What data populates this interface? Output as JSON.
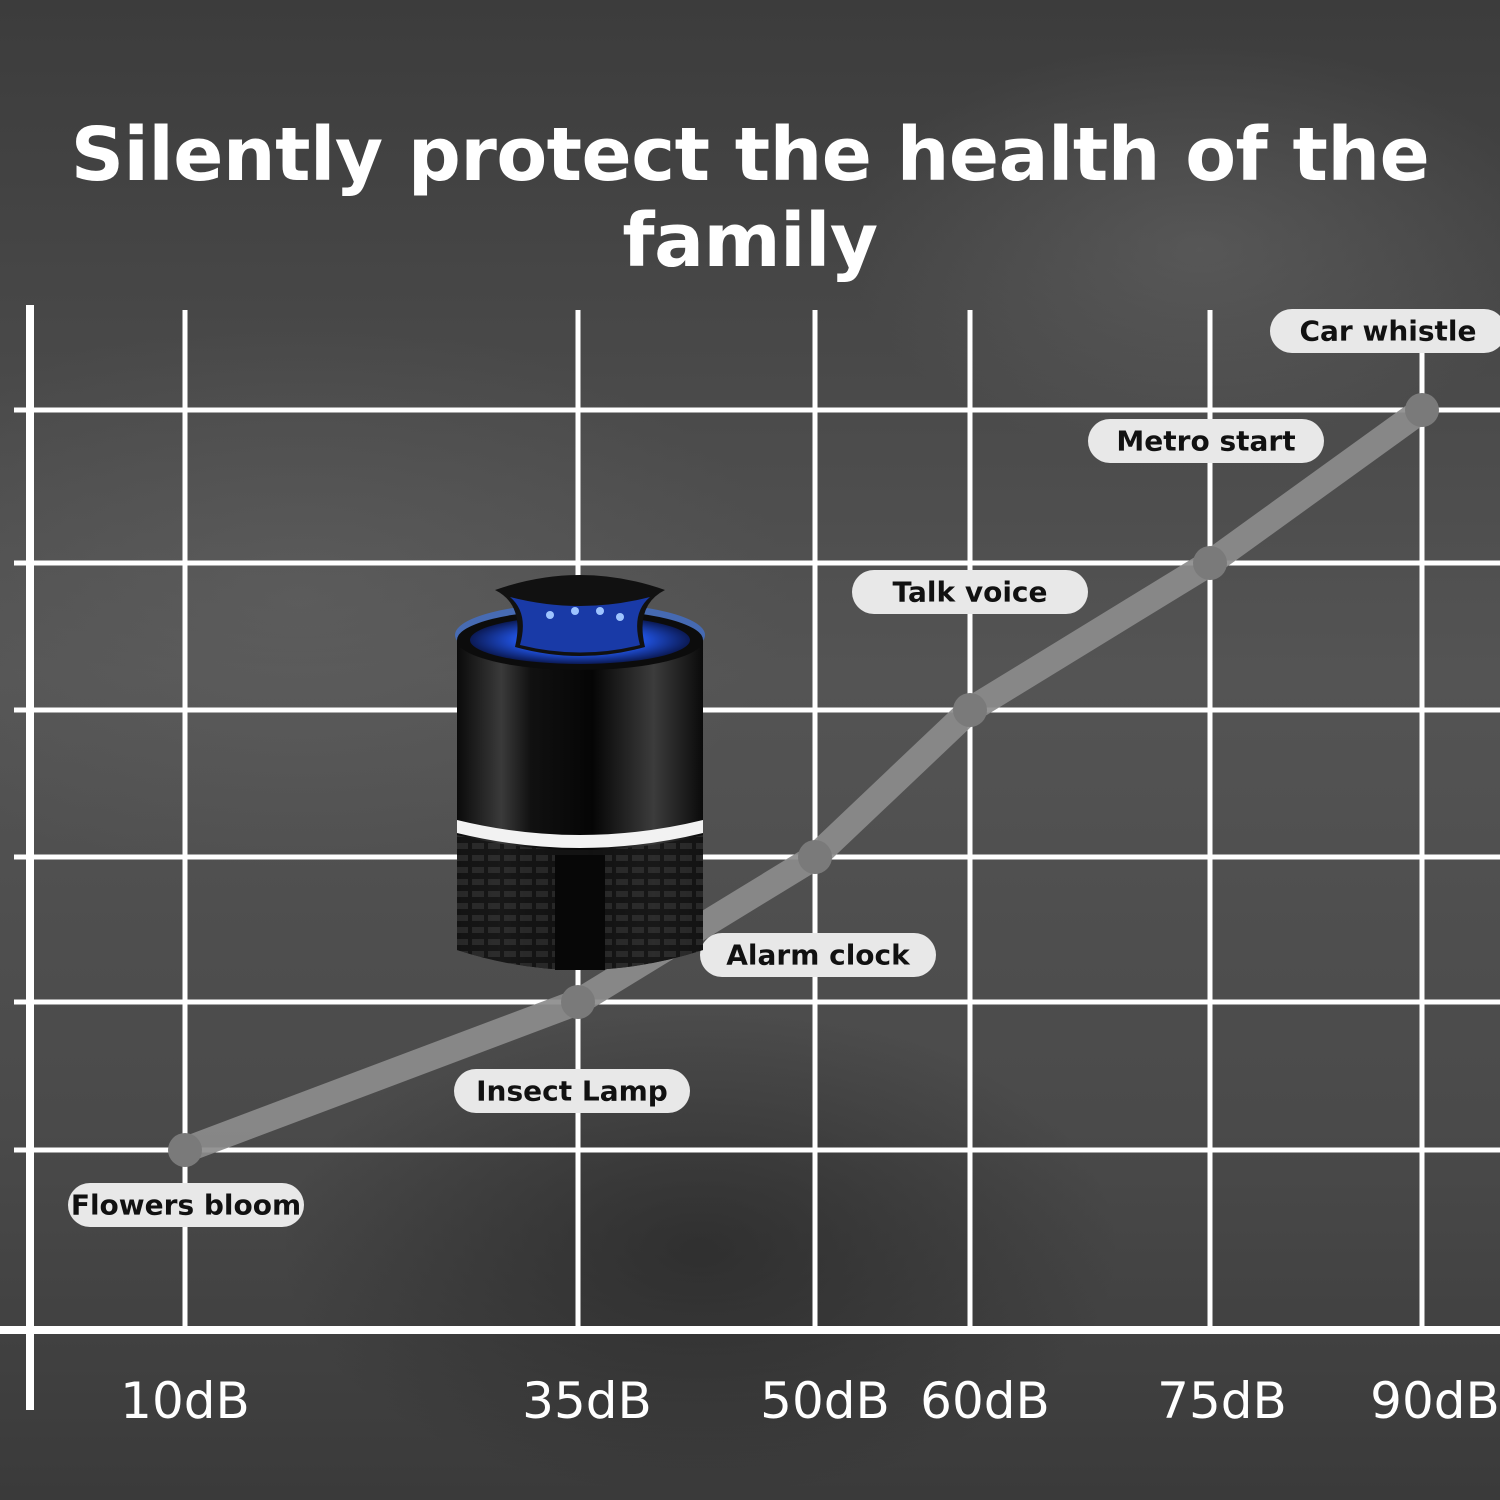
{
  "page": {
    "title": "Silently protect the health of the family"
  },
  "chart_data": {
    "type": "line",
    "title": "Silently protect the health of the family",
    "xlabel": "",
    "ylabel": "",
    "grid": true,
    "x": [
      "10dB",
      "35dB",
      "50dB",
      "60dB",
      "75dB",
      "90dB"
    ],
    "y": [
      10,
      35,
      50,
      60,
      75,
      90
    ],
    "ylim": [
      0,
      100
    ],
    "points": [
      {
        "label": "Flowers bloom",
        "db": 10
      },
      {
        "label": "Insect Lamp",
        "db": 35
      },
      {
        "label": "Alarm clock",
        "db": 50
      },
      {
        "label": "Talk voice",
        "db": 60
      },
      {
        "label": "Metro start",
        "db": 75
      },
      {
        "label": "Car whistle",
        "db": 90
      }
    ],
    "line_color": "#8c8c8c",
    "grid_color": "#ffffff",
    "label_bg_color": "#e8e8e8"
  },
  "product": {
    "icon": "insect-lamp-icon",
    "glow_color": "#2a6cff"
  }
}
